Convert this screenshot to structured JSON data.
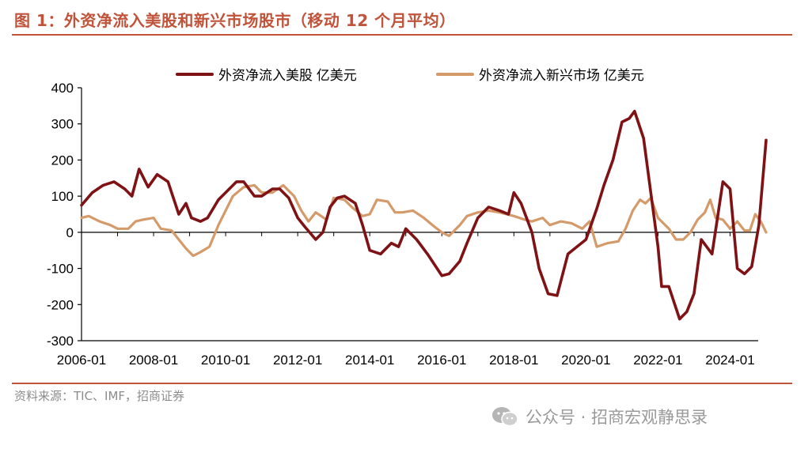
{
  "figure_title": "图 1：外资净流入美股和新兴市场股市（移动 12 个月平均）",
  "source": "资料来源：TIC、IMF，招商证券",
  "watermark": "公众号 · 招商宏观静思录",
  "colors": {
    "title": "#c0533a",
    "series_us": "#7f1214",
    "series_em": "#d49a6a",
    "axis": "#000000"
  },
  "chart_data": {
    "type": "line",
    "title": "",
    "xlabel": "",
    "ylabel": "",
    "ylim": [
      -300,
      400
    ],
    "xlim": [
      2006.0,
      2025.0
    ],
    "yticks": [
      400,
      300,
      200,
      100,
      0,
      -100,
      -200,
      -300
    ],
    "ytick_labels": [
      "400",
      "300",
      "200",
      "100",
      "0",
      "-100",
      "-200",
      "-300"
    ],
    "xticks": [
      2006.0,
      2008.0,
      2010.0,
      2012.0,
      2014.0,
      2016.0,
      2018.0,
      2020.0,
      2022.0,
      2024.0
    ],
    "xtick_labels": [
      "2006-01",
      "2008-01",
      "2010-01",
      "2012-01",
      "2014-01",
      "2016-01",
      "2018-01",
      "2020-01",
      "2022-01",
      "2024-01"
    ],
    "legend_position": "top",
    "series": [
      {
        "name": "外资净流入美股 亿美元",
        "color": "#7f1214",
        "x": [
          2006.0,
          2006.3,
          2006.6,
          2006.9,
          2007.2,
          2007.4,
          2007.6,
          2007.85,
          2008.1,
          2008.4,
          2008.7,
          2008.9,
          2009.05,
          2009.3,
          2009.5,
          2009.8,
          2010.0,
          2010.3,
          2010.5,
          2010.8,
          2011.0,
          2011.3,
          2011.5,
          2011.75,
          2012.0,
          2012.2,
          2012.5,
          2012.7,
          2012.9,
          2013.1,
          2013.3,
          2013.6,
          2013.8,
          2014.0,
          2014.3,
          2014.6,
          2014.8,
          2015.0,
          2015.3,
          2015.6,
          2015.8,
          2016.0,
          2016.2,
          2016.5,
          2016.7,
          2017.0,
          2017.3,
          2017.6,
          2017.85,
          2018.0,
          2018.2,
          2018.5,
          2018.7,
          2018.95,
          2019.2,
          2019.5,
          2019.75,
          2020.0,
          2020.3,
          2020.5,
          2020.75,
          2021.0,
          2021.2,
          2021.35,
          2021.6,
          2021.8,
          2022.0,
          2022.1,
          2022.3,
          2022.6,
          2022.8,
          2023.0,
          2023.2,
          2023.5,
          2023.8,
          2024.0,
          2024.2,
          2024.4,
          2024.6,
          2024.8,
          2025.0
        ],
        "values": [
          75,
          110,
          130,
          140,
          120,
          100,
          175,
          125,
          160,
          140,
          50,
          80,
          40,
          30,
          40,
          90,
          110,
          140,
          140,
          100,
          100,
          120,
          120,
          95,
          40,
          15,
          -20,
          0,
          70,
          95,
          100,
          80,
          20,
          -50,
          -60,
          -30,
          -40,
          10,
          -20,
          -60,
          -90,
          -120,
          -115,
          -80,
          -30,
          40,
          70,
          60,
          50,
          110,
          80,
          0,
          -100,
          -170,
          -175,
          -60,
          -40,
          -20,
          65,
          130,
          200,
          305,
          315,
          335,
          260,
          110,
          -40,
          -150,
          -150,
          -240,
          -220,
          -170,
          -20,
          -60,
          140,
          120,
          -100,
          -115,
          -95,
          20,
          255
        ]
      },
      {
        "name": "外资净流入新兴市场 亿美元",
        "color": "#d49a6a",
        "x": [
          2006.0,
          2006.2,
          2006.5,
          2006.8,
          2007.0,
          2007.3,
          2007.5,
          2007.7,
          2008.0,
          2008.2,
          2008.5,
          2008.7,
          2008.9,
          2009.1,
          2009.3,
          2009.55,
          2009.8,
          2010.0,
          2010.2,
          2010.5,
          2010.8,
          2011.0,
          2011.3,
          2011.6,
          2011.9,
          2012.1,
          2012.3,
          2012.5,
          2012.8,
          2013.0,
          2013.3,
          2013.5,
          2013.8,
          2014.0,
          2014.2,
          2014.5,
          2014.7,
          2014.9,
          2015.2,
          2015.5,
          2015.8,
          2016.0,
          2016.2,
          2016.5,
          2016.7,
          2017.0,
          2017.3,
          2017.6,
          2018.0,
          2018.3,
          2018.5,
          2018.8,
          2019.0,
          2019.3,
          2019.6,
          2019.9,
          2020.1,
          2020.3,
          2020.6,
          2020.9,
          2021.1,
          2021.3,
          2021.5,
          2021.65,
          2021.8,
          2022.0,
          2022.3,
          2022.5,
          2022.7,
          2022.9,
          2023.1,
          2023.3,
          2023.45,
          2023.6,
          2023.8,
          2024.0,
          2024.2,
          2024.4,
          2024.55,
          2024.7,
          2024.85,
          2025.0
        ],
        "values": [
          40,
          45,
          30,
          20,
          10,
          10,
          30,
          35,
          40,
          10,
          5,
          -20,
          -45,
          -65,
          -55,
          -40,
          20,
          60,
          100,
          125,
          130,
          110,
          110,
          130,
          100,
          60,
          30,
          55,
          35,
          95,
          90,
          70,
          45,
          50,
          90,
          85,
          55,
          55,
          60,
          40,
          15,
          0,
          -10,
          20,
          45,
          55,
          60,
          55,
          45,
          35,
          30,
          40,
          20,
          30,
          25,
          10,
          30,
          -40,
          -30,
          -25,
          10,
          60,
          90,
          80,
          95,
          40,
          10,
          -20,
          -20,
          0,
          35,
          55,
          90,
          40,
          35,
          10,
          30,
          5,
          5,
          50,
          30,
          0
        ]
      }
    ]
  }
}
